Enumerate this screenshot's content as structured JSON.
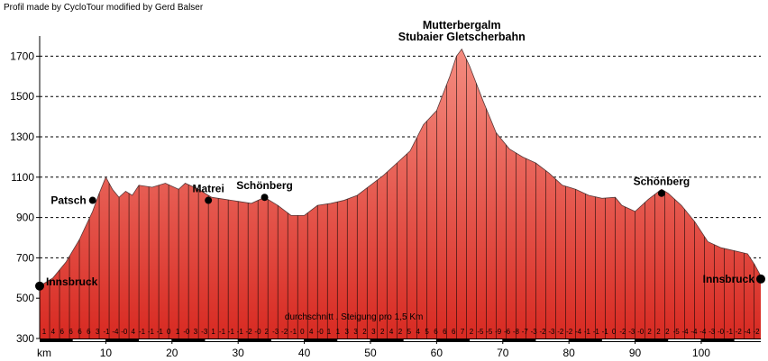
{
  "credit": "Profil made by CycloTour modified by Gerd Balser",
  "chart_data": {
    "type": "area",
    "title_lines": [
      "Mutterbergalm",
      "Stubaier Gletscherbahn"
    ],
    "xlabel": "km",
    "x_range": [
      0,
      109
    ],
    "ylim": [
      300,
      1800
    ],
    "x_ticks": [
      10,
      20,
      30,
      40,
      50,
      60,
      70,
      80,
      90,
      100
    ],
    "y_ticks": [
      300,
      500,
      700,
      900,
      1100,
      1300,
      1500,
      1700
    ],
    "grid": "horizontal dashed",
    "fill_top": "#f48c80",
    "fill_bottom": "#d82a22",
    "profile": [
      [
        0,
        560
      ],
      [
        2,
        600
      ],
      [
        4,
        680
      ],
      [
        6,
        790
      ],
      [
        8,
        930
      ],
      [
        9,
        1020
      ],
      [
        10,
        1100
      ],
      [
        11,
        1040
      ],
      [
        12,
        1000
      ],
      [
        13,
        1030
      ],
      [
        14,
        1010
      ],
      [
        15,
        1060
      ],
      [
        17,
        1050
      ],
      [
        19,
        1070
      ],
      [
        21,
        1040
      ],
      [
        22,
        1070
      ],
      [
        24,
        1040
      ],
      [
        26,
        1000
      ],
      [
        28,
        990
      ],
      [
        30,
        980
      ],
      [
        32,
        970
      ],
      [
        34,
        1000
      ],
      [
        36,
        960
      ],
      [
        38,
        910
      ],
      [
        40,
        910
      ],
      [
        42,
        960
      ],
      [
        44,
        970
      ],
      [
        46,
        985
      ],
      [
        48,
        1010
      ],
      [
        50,
        1060
      ],
      [
        52,
        1110
      ],
      [
        54,
        1170
      ],
      [
        56,
        1230
      ],
      [
        58,
        1360
      ],
      [
        60,
        1430
      ],
      [
        62,
        1600
      ],
      [
        63,
        1700
      ],
      [
        63.8,
        1735
      ],
      [
        65,
        1650
      ],
      [
        67,
        1480
      ],
      [
        69,
        1320
      ],
      [
        71,
        1240
      ],
      [
        73,
        1200
      ],
      [
        75,
        1170
      ],
      [
        77,
        1120
      ],
      [
        79,
        1060
      ],
      [
        81,
        1040
      ],
      [
        83,
        1010
      ],
      [
        85,
        995
      ],
      [
        87,
        1000
      ],
      [
        88,
        960
      ],
      [
        90,
        930
      ],
      [
        92,
        990
      ],
      [
        94,
        1040
      ],
      [
        95,
        1020
      ],
      [
        97,
        960
      ],
      [
        99,
        880
      ],
      [
        101,
        780
      ],
      [
        103,
        750
      ],
      [
        105,
        735
      ],
      [
        107,
        720
      ],
      [
        108,
        670
      ],
      [
        109,
        610
      ]
    ],
    "locations": [
      {
        "name": "Innsbruck",
        "km": 0,
        "elev": 560,
        "label_side": "right"
      },
      {
        "name": "Patsch",
        "km": 8,
        "elev": 985,
        "label_side": "left"
      },
      {
        "name": "Matrei",
        "km": 25.5,
        "elev": 985,
        "label_side": "above"
      },
      {
        "name": "Schönberg",
        "km": 34,
        "elev": 1000,
        "label_side": "above"
      },
      {
        "name": "Schönberg",
        "km": 94,
        "elev": 1020,
        "label_side": "above"
      },
      {
        "name": "Innsbruck",
        "km": 109,
        "elev": 595,
        "label_side": "left"
      }
    ],
    "grade_note": "durchschnitt . Steigung pro 1,5 Km",
    "grades": [
      "1",
      "4",
      "6",
      "6",
      "6",
      "6",
      "3",
      "-1",
      "-4",
      "-0",
      "4",
      "-1",
      "-1",
      "-1",
      "0",
      "1",
      "-0",
      "3",
      "-3",
      "1",
      "-1",
      "-1",
      "-1",
      "-2",
      "-0",
      "2",
      "-3",
      "-2",
      "-1",
      "0",
      "4",
      "-0",
      "1",
      "1",
      "3",
      "3",
      "2",
      "3",
      "2",
      "4",
      "2",
      "5",
      "4",
      "5",
      "6",
      "6",
      "6",
      "7",
      "2",
      "-5",
      "-5",
      "-9",
      "-6",
      "-8",
      "-7",
      "-3",
      "-2",
      "-3",
      "-2",
      "-2",
      "-4",
      "-1",
      "-1",
      "-1",
      "0",
      "-2",
      "-3",
      "-0",
      "2",
      "2",
      "2",
      "-5",
      "-4",
      "-4",
      "-4",
      "-3",
      "-0",
      "-1",
      "-2",
      "-4",
      "-2"
    ]
  }
}
